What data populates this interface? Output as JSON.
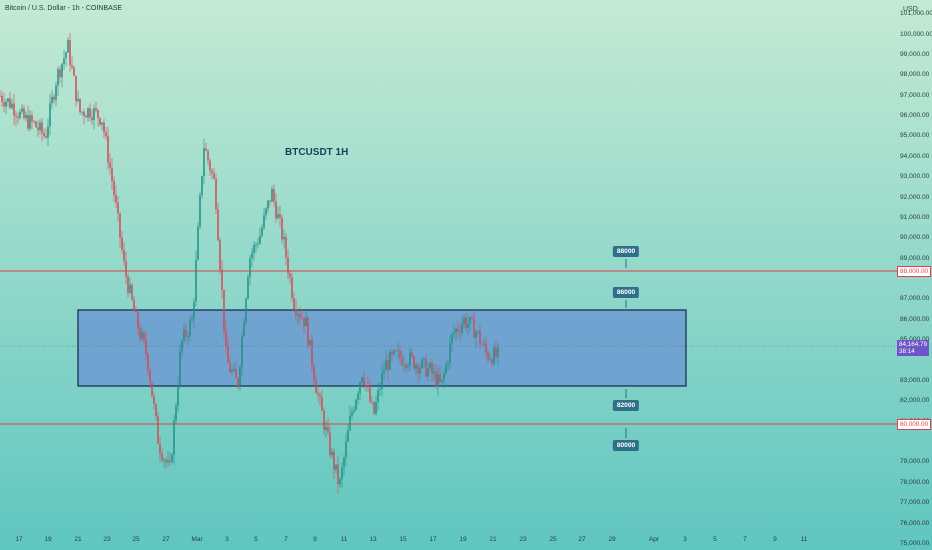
{
  "header": {
    "symbol_title": "Bitcoin / U.S. Dollar - 1h - COINBASE",
    "currency": "USD"
  },
  "colors": {
    "background_top": "#c4ead4",
    "background_bottom": "#5fc6c0",
    "candle_up": "#1f8f84",
    "candle_down": "#d04a56",
    "range_box_fill": "#6e9fd0",
    "range_box_border": "#1b2f5a",
    "support_resistance_line": "#e0404a",
    "label_badge": "#2e6f8a",
    "current_price_tag": "#6f55c8"
  },
  "chart_data": {
    "type": "candlestick",
    "title": "BTCUSDT  1H",
    "x_tick_labels": [
      "17",
      "19",
      "21",
      "23",
      "25",
      "27",
      "Mar",
      "3",
      "5",
      "7",
      "9",
      "11",
      "13",
      "15",
      "17",
      "19",
      "21",
      "23",
      "25",
      "27",
      "29",
      "Apr",
      "3",
      "5",
      "7",
      "9",
      "11"
    ],
    "y_tick_labels": [
      "101,000.00",
      "100,000.00",
      "99,000.00",
      "98,000.00",
      "97,000.00",
      "96,000.00",
      "95,000.00",
      "94,000.00",
      "93,000.00",
      "92,000.00",
      "91,000.00",
      "90,000.00",
      "89,000.00",
      "87,000.00",
      "86,000.00",
      "85,000.00",
      "83,000.00",
      "82,000.00",
      "81,000.00",
      "79,000.00",
      "78,000.00",
      "77,000.00",
      "76,000.00",
      "75,000.00"
    ],
    "ylim": [
      74700,
      101700
    ],
    "grid": false,
    "series_path": [
      {
        "date": "Feb 16",
        "close": 97000
      },
      {
        "date": "Feb 17",
        "close": 96600
      },
      {
        "date": "Feb 18",
        "close": 95900
      },
      {
        "date": "Feb 19",
        "close": 95600
      },
      {
        "date": "Feb 20",
        "close": 95000
      },
      {
        "date": "Feb 21",
        "close": 97900
      },
      {
        "date": "Feb 21",
        "close": 99400
      },
      {
        "date": "Feb 22",
        "close": 96200
      },
      {
        "date": "Feb 23",
        "close": 96300
      },
      {
        "date": "Feb 24",
        "close": 95900
      },
      {
        "date": "Feb 25",
        "close": 92500
      },
      {
        "date": "Feb 26",
        "close": 88500
      },
      {
        "date": "Feb 27",
        "close": 86000
      },
      {
        "date": "Feb 27",
        "close": 84200
      },
      {
        "date": "Feb 28",
        "close": 80000
      },
      {
        "date": "Feb 28",
        "close": 78500
      },
      {
        "date": "Mar 1",
        "close": 84800
      },
      {
        "date": "Mar 2",
        "close": 86000
      },
      {
        "date": "Mar 3",
        "close": 94600
      },
      {
        "date": "Mar 3",
        "close": 92600
      },
      {
        "date": "Mar 4",
        "close": 84000
      },
      {
        "date": "Mar 4",
        "close": 82800
      },
      {
        "date": "Mar 5",
        "close": 89000
      },
      {
        "date": "Mar 6",
        "close": 90200
      },
      {
        "date": "Mar 6",
        "close": 92300
      },
      {
        "date": "Mar 7",
        "close": 90000
      },
      {
        "date": "Mar 8",
        "close": 86800
      },
      {
        "date": "Mar 9",
        "close": 85900
      },
      {
        "date": "Mar 9",
        "close": 82500
      },
      {
        "date": "Mar 10",
        "close": 80000
      },
      {
        "date": "Mar 11",
        "close": 77800
      },
      {
        "date": "Mar 11",
        "close": 81300
      },
      {
        "date": "Mar 12",
        "close": 83500
      },
      {
        "date": "Mar 13",
        "close": 81300
      },
      {
        "date": "Mar 14",
        "close": 83800
      },
      {
        "date": "Mar 15",
        "close": 84200
      },
      {
        "date": "Mar 16",
        "close": 84100
      },
      {
        "date": "Mar 17",
        "close": 83800
      },
      {
        "date": "Mar 18",
        "close": 83500
      },
      {
        "date": "Mar 19",
        "close": 82700
      },
      {
        "date": "Mar 19",
        "close": 85300
      },
      {
        "date": "Mar 20",
        "close": 86000
      },
      {
        "date": "Mar 20",
        "close": 85500
      },
      {
        "date": "Mar 21",
        "close": 84300
      },
      {
        "date": "Mar 21",
        "close": 84200
      }
    ],
    "range_box": {
      "low": 82000,
      "high": 86000,
      "label_high": "86000",
      "label_low": "82000"
    },
    "levels": [
      {
        "price": 88000,
        "label": "88000",
        "axis_tag": "88,000.00"
      },
      {
        "price": 80000,
        "label": "80000",
        "axis_tag": "80,000.00"
      }
    ],
    "current_price": {
      "price": "84,164.79",
      "countdown": "38:14"
    }
  }
}
